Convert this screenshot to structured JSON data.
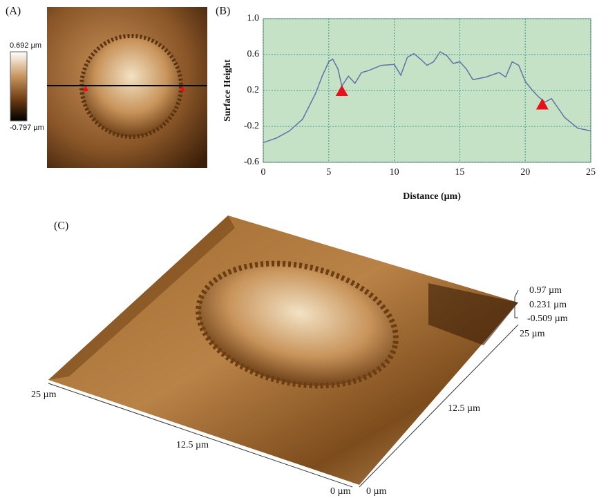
{
  "panel_a": {
    "label": "(A)",
    "colorbar_max": "0.692 µm",
    "colorbar_min": "-0.797 µm"
  },
  "chart_data": {
    "type": "line",
    "label": "(B)",
    "x_label": "Distance (μm)",
    "y_label": "Surface Height",
    "x": [
      0,
      1,
      2,
      3,
      4,
      4.5,
      5,
      5.3,
      5.7,
      6,
      6.5,
      7,
      7.5,
      8,
      9,
      10,
      10.5,
      11,
      11.5,
      12,
      12.5,
      13,
      13.5,
      14,
      14.5,
      15,
      15.5,
      16,
      17,
      18,
      18.5,
      19,
      19.5,
      20,
      20.5,
      21,
      21.5,
      22,
      23,
      24,
      25
    ],
    "values": [
      -0.38,
      -0.33,
      -0.25,
      -0.12,
      0.17,
      0.36,
      0.52,
      0.55,
      0.44,
      0.25,
      0.36,
      0.28,
      0.4,
      0.42,
      0.48,
      0.49,
      0.37,
      0.57,
      0.61,
      0.55,
      0.48,
      0.52,
      0.63,
      0.59,
      0.5,
      0.52,
      0.44,
      0.32,
      0.35,
      0.4,
      0.35,
      0.52,
      0.48,
      0.3,
      0.21,
      0.13,
      0.07,
      0.11,
      -0.1,
      -0.22,
      -0.25
    ],
    "color": "#5f72a8",
    "markers": {
      "x": [
        6,
        21.3
      ],
      "y": [
        0.2,
        0.05
      ],
      "color": "#e8101a"
    },
    "xlim": [
      0,
      25
    ],
    "xticks": [
      0,
      5,
      10,
      15,
      20,
      25
    ],
    "ylim": [
      -0.6,
      1.0
    ],
    "yticks": [
      -0.6,
      -0.2,
      0.2,
      0.6,
      {
        "value": 1.0,
        "label": "1.0"
      }
    ],
    "grid": true,
    "background": "#c5e2c6"
  },
  "panel_c": {
    "label": "(C)",
    "z_labels": [
      "0.97 µm",
      "0.231 µm",
      "-0.509 µm"
    ],
    "right_axis": [
      "25 µm",
      "12.5 µm",
      "0 µm"
    ],
    "left_axis": [
      "25 µm",
      "12.5 µm",
      "0 µm"
    ]
  }
}
